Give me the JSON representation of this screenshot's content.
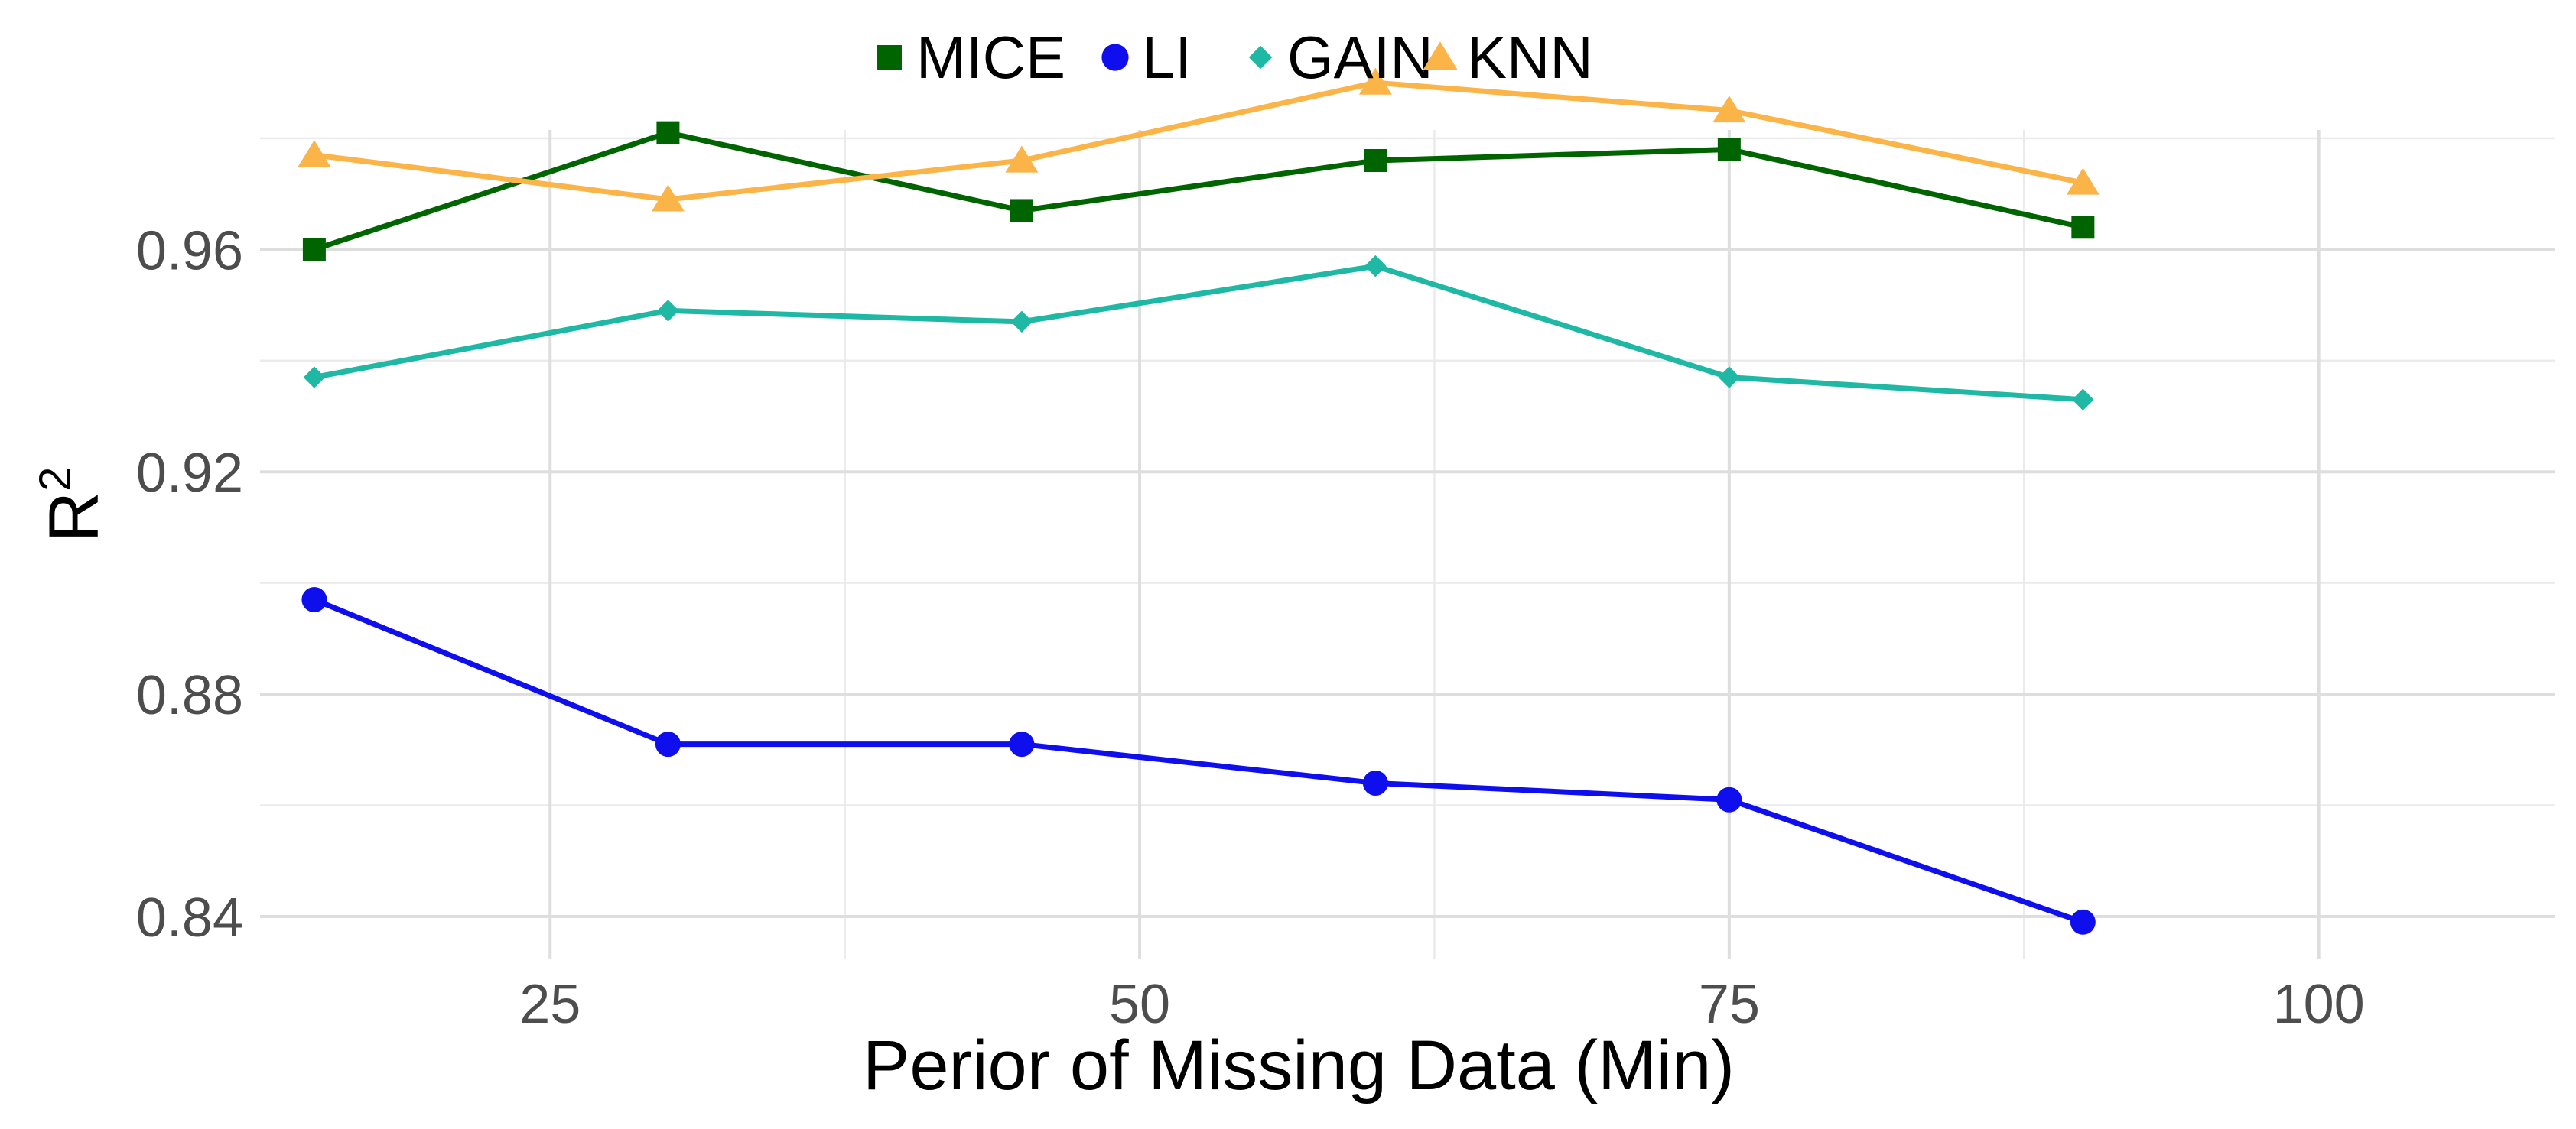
{
  "chart_data": {
    "type": "line",
    "xlabel": "Perior of Missing Data (Min)",
    "ylabel": "R",
    "ylabel_superscript": "2",
    "xlim": [
      12.7,
      110
    ],
    "ylim": [
      0.8323,
      0.9815
    ],
    "x_ticks": [
      25,
      50,
      75,
      100
    ],
    "x_tick_labels": [
      "25",
      "50",
      "75",
      "100"
    ],
    "y_ticks": [
      0.84,
      0.88,
      0.92,
      0.96
    ],
    "y_tick_labels": [
      "0.84",
      "0.88",
      "0.92",
      "0.96"
    ],
    "grid": true,
    "legend_position": "top",
    "x": [
      15,
      30,
      45,
      60,
      75,
      90
    ],
    "series": [
      {
        "name": "MICE",
        "color": "#006400",
        "marker": "square",
        "values": [
          0.96,
          0.981,
          0.967,
          0.976,
          0.978,
          0.964
        ]
      },
      {
        "name": "LI",
        "color": "#0f0fee",
        "marker": "circle",
        "values": [
          0.897,
          0.871,
          0.871,
          0.864,
          0.861,
          0.839
        ]
      },
      {
        "name": "GAIN",
        "color": "#1fb8a5",
        "marker": "diamond",
        "values": [
          0.937,
          0.949,
          0.947,
          0.957,
          0.937,
          0.933
        ]
      },
      {
        "name": "KNN",
        "color": "#fbb448",
        "marker": "triangle",
        "values": [
          0.977,
          0.969,
          0.976,
          0.99,
          0.985,
          0.972
        ]
      }
    ]
  }
}
